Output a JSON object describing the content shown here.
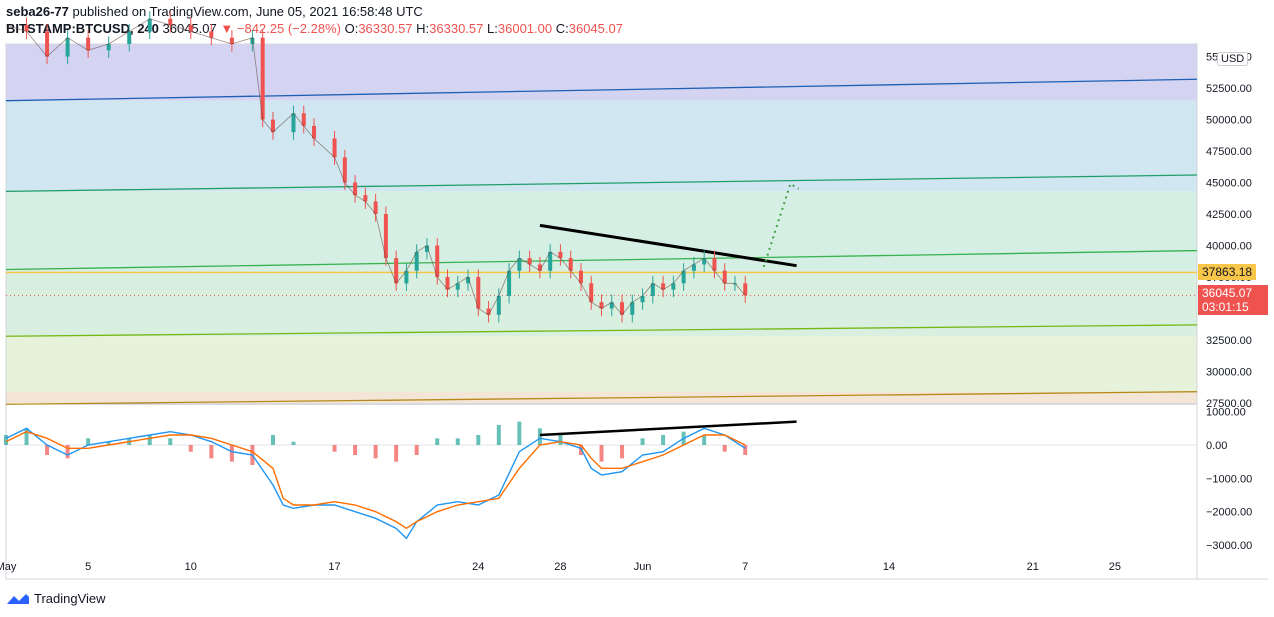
{
  "header": {
    "user": "seba26-77",
    "published": "published on TradingView.com, June 05, 2021 16:58:48 UTC",
    "symbol": "BITSTAMP:BTCUSD, 240",
    "last": "36045.07",
    "change": "−842.25 (−2.28%)",
    "o_label": "O:",
    "o": "36330.57",
    "h_label": "H:",
    "h": "36330.57",
    "l_label": "L:",
    "l": "36001.00",
    "c_label": "C:",
    "c": "36045.07"
  },
  "currency": "USD",
  "price_tags": {
    "level": "37863.18",
    "last": "36045.07",
    "countdown": "03:01:15"
  },
  "footer": {
    "brand": "TradingView"
  },
  "colors": {
    "up": "#26a69a",
    "down": "#ef5350",
    "macd": "#2196f3",
    "signal": "#ff6d00",
    "ma200": "#c9a227",
    "ma100": "#2a2f8f"
  },
  "chart_data": [
    {
      "type": "candlestick",
      "title": "BITSTAMP:BTCUSD, 240",
      "ylim": [
        27500,
        56000
      ],
      "yticks": [
        "27500.00",
        "30000.00",
        "32500.00",
        "35000.00",
        "37500.00",
        "40000.00",
        "42500.00",
        "45000.00",
        "47500.00",
        "50000.00",
        "52500.00",
        "55000.00"
      ],
      "xticks": [
        "May",
        "5",
        "10",
        "17",
        "24",
        "28",
        "Jun",
        "7",
        "14",
        "21",
        "25"
      ],
      "x_range_days": [
        0,
        58
      ],
      "close_series": [
        [
          0,
          57500
        ],
        [
          1,
          57000
        ],
        [
          2,
          55000
        ],
        [
          3,
          56500
        ],
        [
          4,
          55500
        ],
        [
          5,
          56000
        ],
        [
          6,
          57000
        ],
        [
          7,
          58000
        ],
        [
          8,
          57500
        ],
        [
          9,
          57000
        ],
        [
          10,
          56500
        ],
        [
          11,
          56000
        ],
        [
          12,
          56500
        ],
        [
          12.5,
          50000
        ],
        [
          13,
          49000
        ],
        [
          14,
          50500
        ],
        [
          14.5,
          49500
        ],
        [
          15,
          48500
        ],
        [
          16,
          47000
        ],
        [
          16.5,
          45000
        ],
        [
          17,
          44000
        ],
        [
          17.5,
          43500
        ],
        [
          18,
          42500
        ],
        [
          18.5,
          39000
        ],
        [
          19,
          37000
        ],
        [
          19.5,
          38000
        ],
        [
          20,
          39500
        ],
        [
          20.5,
          40000
        ],
        [
          21,
          37500
        ],
        [
          21.5,
          36500
        ],
        [
          22,
          37000
        ],
        [
          22.5,
          37500
        ],
        [
          23,
          35000
        ],
        [
          23.5,
          34500
        ],
        [
          24,
          36000
        ],
        [
          24.5,
          38000
        ],
        [
          25,
          39000
        ],
        [
          25.5,
          38500
        ],
        [
          26,
          38000
        ],
        [
          26.5,
          39500
        ],
        [
          27,
          39000
        ],
        [
          27.5,
          38000
        ],
        [
          28,
          37000
        ],
        [
          28.5,
          35500
        ],
        [
          29,
          35000
        ],
        [
          29.5,
          35500
        ],
        [
          30,
          34500
        ],
        [
          30.5,
          35500
        ],
        [
          31,
          36000
        ],
        [
          31.5,
          37000
        ],
        [
          32,
          36500
        ],
        [
          32.5,
          37000
        ],
        [
          33,
          38000
        ],
        [
          33.5,
          38500
        ],
        [
          34,
          39000
        ],
        [
          34.5,
          38000
        ],
        [
          35,
          37000
        ],
        [
          35.5,
          37000
        ],
        [
          36,
          36045
        ]
      ],
      "lines": [
        {
          "name": "",
          "points": [
            [
              0,
              51500
            ],
            [
              58,
              53200
            ]
          ]
        },
        {
          "name": "",
          "points": [
            [
              0,
              44300
            ],
            [
              58,
              45600
            ]
          ]
        },
        {
          "name": "",
          "points": [
            [
              0,
              38100
            ],
            [
              58,
              39600
            ]
          ]
        },
        {
          "name": "",
          "points": [
            [
              0,
              32800
            ],
            [
              58,
              33700
            ]
          ]
        },
        {
          "name": "",
          "points": [
            [
              0,
              27400
            ],
            [
              58,
              28400
            ]
          ]
        },
        {
          "name": "",
          "points": [
            [
              26,
              41600
            ],
            [
              38.5,
              38400
            ]
          ]
        }
      ],
      "level": 37863.18,
      "last": 36045.07,
      "projection": [
        [
          36.9,
          38300
        ],
        [
          38.2,
          44900
        ],
        [
          38.6,
          44500
        ]
      ]
    },
    {
      "type": "line",
      "title": "",
      "ylim": [
        -3300,
        1200
      ],
      "yticks": [
        "1000.00",
        "0.00",
        "−1000.00",
        "−2000.00",
        "−3000.00"
      ],
      "series": [
        {
          "name": "",
          "points": [
            [
              0,
              200
            ],
            [
              1,
              500
            ],
            [
              2,
              0
            ],
            [
              3,
              -300
            ],
            [
              4,
              0
            ],
            [
              5,
              100
            ],
            [
              6,
              200
            ],
            [
              7,
              300
            ],
            [
              8,
              400
            ],
            [
              9,
              300
            ],
            [
              10,
              100
            ],
            [
              11,
              -200
            ],
            [
              12,
              -300
            ],
            [
              13,
              -1200
            ],
            [
              13.5,
              -1800
            ],
            [
              14,
              -1900
            ],
            [
              15,
              -1800
            ],
            [
              16,
              -1800
            ],
            [
              17,
              -2000
            ],
            [
              18,
              -2200
            ],
            [
              19,
              -2500
            ],
            [
              19.5,
              -2800
            ],
            [
              20,
              -2300
            ],
            [
              21,
              -1800
            ],
            [
              22,
              -1700
            ],
            [
              23,
              -1800
            ],
            [
              24,
              -1500
            ],
            [
              25,
              -200
            ],
            [
              26,
              200
            ],
            [
              27,
              100
            ],
            [
              28,
              -100
            ],
            [
              28.5,
              -700
            ],
            [
              29,
              -900
            ],
            [
              30,
              -800
            ],
            [
              31,
              -300
            ],
            [
              32,
              -200
            ],
            [
              33,
              200
            ],
            [
              34,
              500
            ],
            [
              35,
              300
            ],
            [
              36,
              -100
            ]
          ]
        },
        {
          "name": "",
          "points": [
            [
              0,
              100
            ],
            [
              1,
              400
            ],
            [
              2,
              200
            ],
            [
              3,
              -100
            ],
            [
              4,
              -100
            ],
            [
              5,
              0
            ],
            [
              6,
              100
            ],
            [
              7,
              200
            ],
            [
              8,
              300
            ],
            [
              9,
              300
            ],
            [
              10,
              200
            ],
            [
              11,
              0
            ],
            [
              12,
              -200
            ],
            [
              13,
              -700
            ],
            [
              13.5,
              -1600
            ],
            [
              14,
              -1800
            ],
            [
              15,
              -1800
            ],
            [
              16,
              -1700
            ],
            [
              17,
              -1800
            ],
            [
              18,
              -2000
            ],
            [
              19,
              -2300
            ],
            [
              19.5,
              -2500
            ],
            [
              20,
              -2300
            ],
            [
              21,
              -2000
            ],
            [
              22,
              -1800
            ],
            [
              23,
              -1700
            ],
            [
              24,
              -1600
            ],
            [
              25,
              -700
            ],
            [
              26,
              0
            ],
            [
              27,
              100
            ],
            [
              28,
              0
            ],
            [
              28.5,
              -400
            ],
            [
              29,
              -700
            ],
            [
              30,
              -700
            ],
            [
              31,
              -500
            ],
            [
              32,
              -300
            ],
            [
              33,
              0
            ],
            [
              34,
              300
            ],
            [
              35,
              300
            ],
            [
              36,
              0
            ]
          ]
        }
      ],
      "histogram": [
        0.3,
        0.5,
        -0.3,
        -0.4,
        0.2,
        0.1,
        0.2,
        0.3,
        0.2,
        -0.2,
        -0.4,
        -0.5,
        -0.6,
        0.3,
        0.1,
        0.0,
        -0.2,
        -0.3,
        -0.4,
        -0.5,
        -0.3,
        0.2,
        0.2,
        0.3,
        0.6,
        0.7,
        0.5,
        0.3,
        -0.3,
        -0.5,
        -0.4,
        0.2,
        0.3,
        0.4,
        0.3,
        -0.2,
        -0.3
      ],
      "trendline": [
        [
          26,
          300
        ],
        [
          38.5,
          700
        ]
      ]
    }
  ]
}
